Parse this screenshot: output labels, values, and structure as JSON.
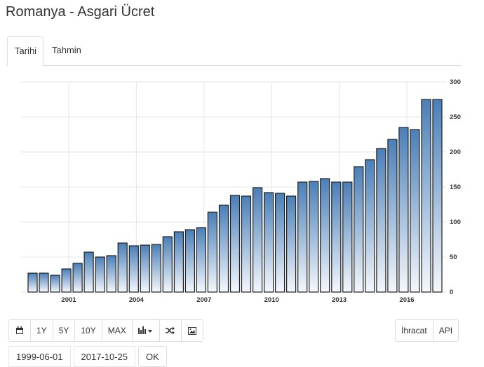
{
  "header": {
    "title": "Romanya - Asgari Ücret"
  },
  "tabs": [
    {
      "label": "Tarihi",
      "active": true
    },
    {
      "label": "Tahmin",
      "active": false
    }
  ],
  "chart_data": {
    "type": "bar",
    "title": "",
    "xlabel": "",
    "ylabel": "",
    "ylim": [
      0,
      300
    ],
    "yticks": [
      "0",
      "50",
      "100",
      "150",
      "200",
      "250",
      "300"
    ],
    "xticks": [
      "2001",
      "2004",
      "2007",
      "2010",
      "2013",
      "2016"
    ],
    "xtick_years": [
      2001,
      2004,
      2007,
      2010,
      2013,
      2016
    ],
    "x_start": 1999,
    "x_end": 2018,
    "grid": true,
    "colors": {
      "bar_top": "#4a7fb8",
      "bar_bottom": "#f5f8fc",
      "bar_stroke": "#1f1f1f",
      "grid": "#e6e6e6"
    },
    "values": [
      27,
      27,
      24,
      33,
      41,
      57,
      50,
      52,
      70,
      66,
      67,
      68,
      79,
      86,
      89,
      92,
      114,
      124,
      138,
      137,
      149,
      142,
      141,
      137,
      157,
      158,
      162,
      157,
      157,
      179,
      189,
      205,
      218,
      235,
      232,
      275,
      275
    ]
  },
  "toolbar": {
    "calendar_icon": "calendar-icon",
    "buttons": [
      "1Y",
      "5Y",
      "10Y",
      "MAX"
    ],
    "chart_type_icon": "bar-chart-dropdown-icon",
    "shuffle_icon": "shuffle-icon",
    "image_icon": "image-icon",
    "export_label": "İhracat",
    "api_label": "API"
  },
  "dates": {
    "start": "1999-06-01",
    "end": "2017-10-25",
    "ok_label": "OK"
  }
}
